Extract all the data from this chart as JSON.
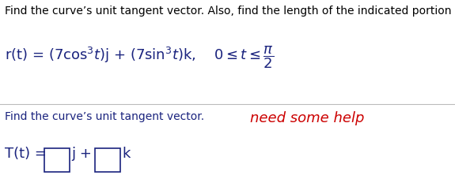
{
  "line1": "Find the curve’s unit tangent vector. Also, find the length of the indicated portion of the curve.",
  "line1_color": "#000000",
  "line1_fontsize": 10.0,
  "find_tangent_text": "Find the curve’s unit tangent vector.",
  "find_tangent_color": "#1a237e",
  "need_help_text": "need some help",
  "need_help_color": "#cc0000",
  "math_color": "#1a237e",
  "box_color": "#1a237e",
  "background_color": "#ffffff",
  "separator_color": "#bbbbbb",
  "fontsize_math": 13,
  "fontsize_small": 10.0
}
